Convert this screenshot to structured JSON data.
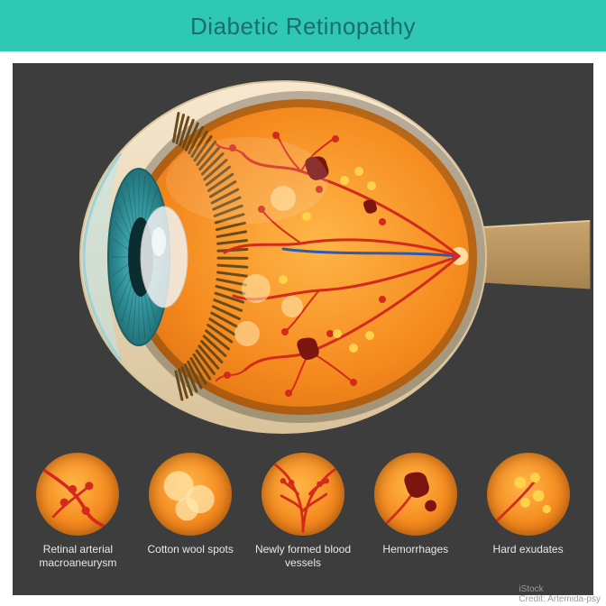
{
  "title": "Diabetic Retinopathy",
  "title_fontsize": 26,
  "title_color": "#1d6c72",
  "header_bg": "#2ec8b3",
  "panel_bg": "#3d3d3d",
  "eye": {
    "sclera": "#f7e8cf",
    "sclera_shadow": "#d8c39b",
    "retina_gradient": [
      "#ffb648",
      "#f58a1f",
      "#d86a0d"
    ],
    "iris_colors": [
      "#58c0c7",
      "#2f8f97",
      "#1c6168"
    ],
    "cornea_color": "#bfe6ea",
    "lens_color": "#f2f2f2",
    "ciliary_color": "#6b4a1a",
    "nerve_color": "#c9a46f",
    "nerve_shadow": "#a6834e",
    "vessel_color": "#d42a1e",
    "vein_color": "#2e5ab0",
    "hemorrhage_color": "#7c1410",
    "exudate_color": "#ffd24a",
    "wool_color": "#ffe9b3"
  },
  "legend": [
    {
      "key": "macroaneurysm",
      "label": "Retinal arterial\nmacroaneurysm"
    },
    {
      "key": "wool",
      "label": "Cotton wool spots"
    },
    {
      "key": "neovessels",
      "label": "Newly formed\nblood vessels"
    },
    {
      "key": "hemorrhage",
      "label": "Hemorrhages"
    },
    {
      "key": "exudate",
      "label": "Hard exudates"
    }
  ],
  "watermark": "iStock\nCredit: Artemida-psy"
}
